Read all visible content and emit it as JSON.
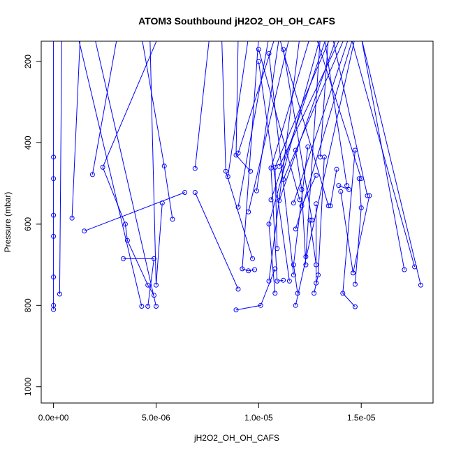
{
  "chart_data": {
    "type": "line",
    "title": "ATOM3 Southbound jH2O2_OH_OH_CAFS",
    "xlabel": "jH2O2_OH_OH_CAFS",
    "ylabel": "Pressure (mbar)",
    "xlim": [
      -6e-07,
      1.85e-05
    ],
    "ylim": [
      1040,
      150
    ],
    "y_reversed": true,
    "grid": false,
    "line_color": "#0000ff",
    "x_ticks": [
      {
        "value": 0,
        "label": "0.0e+00"
      },
      {
        "value": 5e-06,
        "label": "5.0e-06"
      },
      {
        "value": 1e-05,
        "label": "1.0e-05"
      },
      {
        "value": 1.5e-05,
        "label": "1.5e-05"
      }
    ],
    "y_ticks": [
      {
        "value": 200,
        "label": "200"
      },
      {
        "value": 400,
        "label": "400"
      },
      {
        "value": 600,
        "label": "600"
      },
      {
        "value": 800,
        "label": "800"
      },
      {
        "value": 1000,
        "label": "1000"
      }
    ],
    "series": [
      {
        "points": [
          [
            0,
            120
          ],
          [
            0,
            435
          ],
          [
            0,
            488
          ],
          [
            0,
            578
          ],
          [
            0,
            630
          ],
          [
            0,
            730
          ],
          [
            0,
            800
          ],
          [
            0,
            810
          ]
        ]
      },
      {
        "points": [
          [
            4e-07,
            140
          ],
          [
            3e-07,
            772
          ]
        ]
      },
      {
        "points": [
          [
            1.3e-06,
            140
          ],
          [
            9e-07,
            585
          ]
        ]
      },
      {
        "points": [
          [
            3.1e-06,
            140
          ],
          [
            1.9e-06,
            478
          ]
        ]
      },
      {
        "points": [
          [
            5.1e-06,
            140
          ],
          [
            2.4e-06,
            460
          ],
          [
            3.5e-06,
            600
          ],
          [
            3.6e-06,
            640
          ],
          [
            4.6e-06,
            750
          ],
          [
            4.9e-06,
            775
          ]
        ]
      },
      {
        "points": [
          [
            1.5e-06,
            617
          ],
          [
            6.4e-06,
            522
          ]
        ]
      },
      {
        "points": [
          [
            3.4e-06,
            685
          ],
          [
            4.9e-06,
            685
          ],
          [
            4.6e-06,
            802
          ]
        ]
      },
      {
        "points": [
          [
            4.7e-06,
            140
          ],
          [
            5e-06,
            750
          ],
          [
            5.3e-06,
            548
          ]
        ]
      },
      {
        "points": [
          [
            4.3e-06,
            140
          ],
          [
            5.4e-06,
            457
          ],
          [
            5.8e-06,
            588
          ]
        ]
      },
      {
        "points": [
          [
            1.2e-06,
            140
          ],
          [
            4.3e-06,
            802
          ]
        ]
      },
      {
        "points": [
          [
            2e-06,
            140
          ],
          [
            5e-06,
            802
          ]
        ]
      },
      {
        "points": [
          [
            7.6e-06,
            140
          ],
          [
            6.9e-06,
            463
          ]
        ]
      },
      {
        "points": [
          [
            6.9e-06,
            522
          ],
          [
            9e-06,
            760
          ]
        ]
      },
      {
        "points": [
          [
            9e-06,
            140
          ],
          [
            8.9e-06,
            430
          ],
          [
            9.6e-06,
            470
          ]
        ]
      },
      {
        "points": [
          [
            8.2e-06,
            140
          ],
          [
            8.4e-06,
            470
          ],
          [
            9.7e-06,
            685
          ]
        ]
      },
      {
        "points": [
          [
            8.9e-06,
            811
          ],
          [
            1.01e-05,
            800
          ],
          [
            1.08e-05,
            710
          ]
        ]
      },
      {
        "points": [
          [
            9.5e-06,
            140
          ],
          [
            8.5e-06,
            483
          ]
        ]
      },
      {
        "points": [
          [
            1e-05,
            140
          ],
          [
            9.2e-06,
            710
          ],
          [
            9.5e-06,
            715
          ],
          [
            9.8e-06,
            712
          ]
        ]
      },
      {
        "points": [
          [
            1.05e-05,
            140
          ],
          [
            9e-06,
            558
          ]
        ]
      },
      {
        "points": [
          [
            1.08e-05,
            140
          ],
          [
            9e-06,
            425
          ]
        ]
      },
      {
        "points": [
          [
            1.1e-05,
            140
          ],
          [
            9.9e-06,
            518
          ]
        ]
      },
      {
        "points": [
          [
            1.15e-05,
            140
          ],
          [
            9.5e-06,
            570
          ]
        ]
      },
      {
        "points": [
          [
            1.2e-05,
            140
          ],
          [
            1.05e-05,
            740
          ]
        ]
      },
      {
        "points": [
          [
            1.25e-05,
            140
          ],
          [
            1.06e-05,
            462
          ],
          [
            1.09e-05,
            740
          ],
          [
            1.12e-05,
            738
          ]
        ]
      },
      {
        "points": [
          [
            1.3e-05,
            140
          ],
          [
            1.05e-05,
            600
          ],
          [
            1.08e-05,
            770
          ]
        ]
      },
      {
        "points": [
          [
            1.33e-05,
            140
          ],
          [
            1.06e-05,
            540
          ]
        ]
      },
      {
        "points": [
          [
            1.35e-05,
            140
          ],
          [
            1.08e-05,
            460
          ],
          [
            1.09e-05,
            660
          ]
        ]
      },
      {
        "points": [
          [
            1.38e-05,
            140
          ],
          [
            1.1e-05,
            542
          ]
        ]
      },
      {
        "points": [
          [
            1.4e-05,
            140
          ],
          [
            1.1e-05,
            458
          ]
        ]
      },
      {
        "points": [
          [
            1.42e-05,
            140
          ],
          [
            1.12e-05,
            490
          ]
        ]
      },
      {
        "points": [
          [
            1.44e-05,
            140
          ],
          [
            1.17e-05,
            548
          ]
        ]
      },
      {
        "points": [
          [
            1.46e-05,
            140
          ],
          [
            1.18e-05,
            612
          ]
        ]
      },
      {
        "points": [
          [
            1.47e-05,
            140
          ],
          [
            1.18e-05,
            800
          ]
        ]
      },
      {
        "points": [
          [
            1.18e-05,
            418
          ],
          [
            1.21e-05,
            515
          ],
          [
            1.23e-05,
            700
          ]
        ]
      },
      {
        "points": [
          [
            1.24e-05,
            410
          ],
          [
            1.17e-05,
            700
          ],
          [
            1.19e-05,
            770
          ]
        ]
      },
      {
        "points": [
          [
            1.28e-05,
            480
          ],
          [
            1.21e-05,
            555
          ]
        ]
      },
      {
        "points": [
          [
            1.25e-05,
            590
          ],
          [
            1.28e-05,
            700
          ]
        ]
      },
      {
        "points": [
          [
            1.28e-05,
            550
          ],
          [
            1.28e-05,
            745
          ]
        ]
      },
      {
        "points": [
          [
            1.32e-05,
            435
          ],
          [
            1.29e-05,
            725
          ],
          [
            1.27e-05,
            770
          ]
        ]
      },
      {
        "points": [
          [
            1.38e-05,
            465
          ],
          [
            1.35e-05,
            555
          ]
        ]
      },
      {
        "points": [
          [
            1.39e-05,
            505
          ],
          [
            1.44e-05,
            515
          ]
        ]
      },
      {
        "points": [
          [
            1.4e-05,
            520
          ],
          [
            1.46e-05,
            720
          ]
        ]
      },
      {
        "points": [
          [
            1.47e-05,
            418
          ],
          [
            1.41e-05,
            770
          ],
          [
            1.47e-05,
            803
          ]
        ]
      },
      {
        "points": [
          [
            1.49e-05,
            488
          ],
          [
            1.5e-05,
            560
          ],
          [
            1.47e-05,
            748
          ]
        ]
      },
      {
        "points": [
          [
            1.54e-05,
            530
          ],
          [
            1.46e-05,
            720
          ]
        ]
      },
      {
        "points": [
          [
            1.5e-05,
            140
          ],
          [
            1.71e-05,
            712
          ]
        ]
      },
      {
        "points": [
          [
            1.45e-05,
            140
          ],
          [
            1.76e-05,
            705
          ]
        ]
      },
      {
        "points": [
          [
            1.5e-05,
            140
          ],
          [
            1.79e-05,
            750
          ]
        ]
      },
      {
        "points": [
          [
            1.32e-05,
            140
          ],
          [
            1.43e-05,
            505
          ]
        ]
      },
      {
        "points": [
          [
            1.36e-05,
            140
          ],
          [
            1.53e-05,
            530
          ]
        ]
      },
      {
        "points": [
          [
            1.28e-05,
            140
          ],
          [
            1.5e-05,
            488
          ]
        ]
      },
      {
        "points": [
          [
            1e-05,
            200
          ],
          [
            1.15e-05,
            740
          ]
        ]
      },
      {
        "points": [
          [
            1.05e-05,
            180
          ],
          [
            1.17e-05,
            725
          ]
        ]
      },
      {
        "points": [
          [
            1e-05,
            170
          ],
          [
            1.2e-05,
            540
          ]
        ]
      },
      {
        "points": [
          [
            1.12e-05,
            170
          ],
          [
            1.26e-05,
            590
          ]
        ]
      },
      {
        "points": [
          [
            1.1e-05,
            140
          ],
          [
            1.34e-05,
            555
          ]
        ]
      },
      {
        "points": [
          [
            1.3e-05,
            140
          ],
          [
            1.23e-05,
            680
          ]
        ]
      },
      {
        "points": [
          [
            1.34e-05,
            140
          ],
          [
            1.3e-05,
            435
          ]
        ]
      }
    ]
  }
}
